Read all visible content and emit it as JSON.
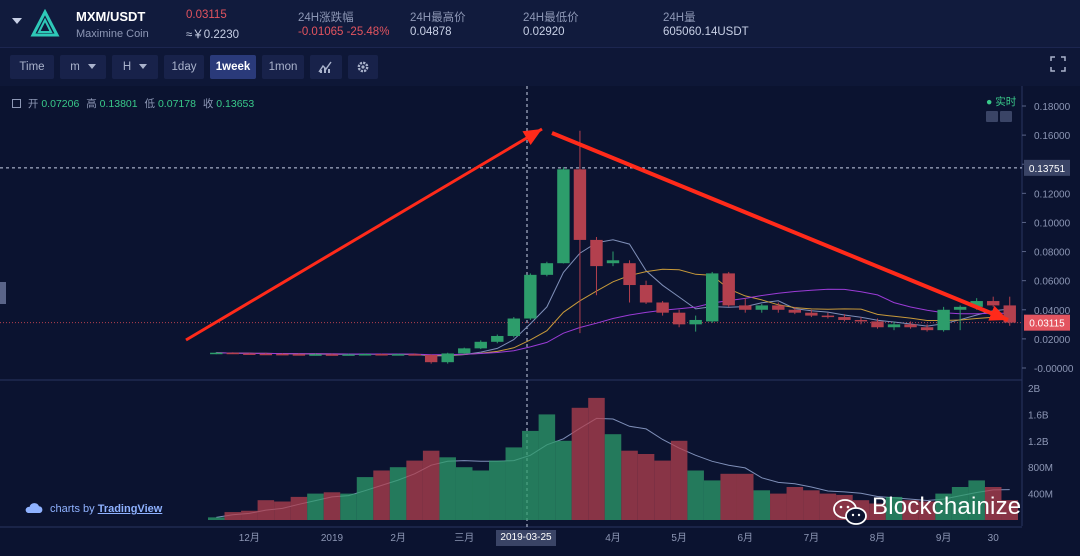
{
  "header": {
    "pair": "MXM/USDT",
    "coin_name": "Maximine Coin",
    "price": "0.03115",
    "price_cny": "≈￥0.2230",
    "change_label": "24H涨跌幅",
    "change_value": "-0.01065 -25.48%",
    "high_label": "24H最高价",
    "high_value": "0.04878",
    "low_label": "24H最低价",
    "low_value": "0.02920",
    "volume_label": "24H量",
    "volume_value": "605060.14USDT"
  },
  "toolbar": {
    "time": "Time",
    "minute": "m",
    "hour": "H",
    "day": "1day",
    "week": "1week",
    "month": "1mon"
  },
  "ohlc": {
    "open_label": "开",
    "open": "0.07206",
    "high_label": "高",
    "high": "0.13801",
    "low_label": "低",
    "low": "0.07178",
    "close_label": "收",
    "close": "0.13653"
  },
  "realtime_label": "实时",
  "price_axis": [
    "0.18000",
    "0.16000",
    "0.14000",
    "0.12000",
    "0.10000",
    "0.08000",
    "0.06000",
    "0.04000",
    "0.02000",
    "-0.00000"
  ],
  "current_price_tag": "0.03115",
  "crosshair_price_tag": "0.13751",
  "volume_axis": [
    "2B",
    "1.6B",
    "1.2B",
    "800M",
    "400M"
  ],
  "time_axis": [
    "12月",
    "2019",
    "2月",
    "三月",
    "4月",
    "5月",
    "6月",
    "7月",
    "8月",
    "9月",
    "30"
  ],
  "crosshair_date": "2019-03-25",
  "branding": "charts by",
  "branding_link": "TradingView",
  "watermark": "Blockchainize",
  "colors": {
    "up": "#2d9d6b",
    "down": "#b3404e",
    "bg": "#0b1330",
    "arrow": "#ff2a1a"
  },
  "chart_data": {
    "type": "candlestick",
    "candles": [
      {
        "o": 0.01,
        "h": 0.011,
        "l": 0.0095,
        "c": 0.0105
      },
      {
        "o": 0.0105,
        "h": 0.0108,
        "l": 0.0096,
        "c": 0.01
      },
      {
        "o": 0.01,
        "h": 0.0104,
        "l": 0.0094,
        "c": 0.0098
      },
      {
        "o": 0.0098,
        "h": 0.0104,
        "l": 0.0092,
        "c": 0.0097
      },
      {
        "o": 0.0097,
        "h": 0.0102,
        "l": 0.009,
        "c": 0.0095
      },
      {
        "o": 0.0095,
        "h": 0.01,
        "l": 0.0088,
        "c": 0.0093
      },
      {
        "o": 0.0093,
        "h": 0.01,
        "l": 0.0089,
        "c": 0.0094
      },
      {
        "o": 0.0094,
        "h": 0.0099,
        "l": 0.009,
        "c": 0.0092
      },
      {
        "o": 0.0092,
        "h": 0.0098,
        "l": 0.0087,
        "c": 0.0094
      },
      {
        "o": 0.0094,
        "h": 0.01,
        "l": 0.009,
        "c": 0.0096
      },
      {
        "o": 0.0096,
        "h": 0.0099,
        "l": 0.009,
        "c": 0.0093
      },
      {
        "o": 0.0093,
        "h": 0.0098,
        "l": 0.0089,
        "c": 0.0095
      },
      {
        "o": 0.0095,
        "h": 0.01,
        "l": 0.0089,
        "c": 0.009
      },
      {
        "o": 0.009,
        "h": 0.0094,
        "l": 0.003,
        "c": 0.004
      },
      {
        "o": 0.004,
        "h": 0.0105,
        "l": 0.003,
        "c": 0.01
      },
      {
        "o": 0.01,
        "h": 0.014,
        "l": 0.0095,
        "c": 0.0135
      },
      {
        "o": 0.0135,
        "h": 0.019,
        "l": 0.013,
        "c": 0.018
      },
      {
        "o": 0.018,
        "h": 0.023,
        "l": 0.017,
        "c": 0.022
      },
      {
        "o": 0.022,
        "h": 0.035,
        "l": 0.021,
        "c": 0.034
      },
      {
        "o": 0.034,
        "h": 0.065,
        "l": 0.033,
        "c": 0.064
      },
      {
        "o": 0.064,
        "h": 0.073,
        "l": 0.063,
        "c": 0.072
      },
      {
        "o": 0.072,
        "h": 0.138,
        "l": 0.0718,
        "c": 0.1365
      },
      {
        "o": 0.1365,
        "h": 0.163,
        "l": 0.024,
        "c": 0.088
      },
      {
        "o": 0.088,
        "h": 0.09,
        "l": 0.05,
        "c": 0.07
      },
      {
        "o": 0.072,
        "h": 0.08,
        "l": 0.07,
        "c": 0.074
      },
      {
        "o": 0.072,
        "h": 0.074,
        "l": 0.045,
        "c": 0.057
      },
      {
        "o": 0.057,
        "h": 0.06,
        "l": 0.044,
        "c": 0.045
      },
      {
        "o": 0.045,
        "h": 0.046,
        "l": 0.036,
        "c": 0.038
      },
      {
        "o": 0.038,
        "h": 0.04,
        "l": 0.028,
        "c": 0.03
      },
      {
        "o": 0.03,
        "h": 0.036,
        "l": 0.025,
        "c": 0.033
      },
      {
        "o": 0.032,
        "h": 0.066,
        "l": 0.031,
        "c": 0.065
      },
      {
        "o": 0.065,
        "h": 0.066,
        "l": 0.042,
        "c": 0.043
      },
      {
        "o": 0.043,
        "h": 0.048,
        "l": 0.038,
        "c": 0.04
      },
      {
        "o": 0.04,
        "h": 0.044,
        "l": 0.038,
        "c": 0.043
      },
      {
        "o": 0.043,
        "h": 0.045,
        "l": 0.038,
        "c": 0.04
      },
      {
        "o": 0.04,
        "h": 0.042,
        "l": 0.037,
        "c": 0.038
      },
      {
        "o": 0.038,
        "h": 0.04,
        "l": 0.035,
        "c": 0.036
      },
      {
        "o": 0.036,
        "h": 0.038,
        "l": 0.034,
        "c": 0.035
      },
      {
        "o": 0.035,
        "h": 0.037,
        "l": 0.032,
        "c": 0.033
      },
      {
        "o": 0.033,
        "h": 0.035,
        "l": 0.03,
        "c": 0.032
      },
      {
        "o": 0.032,
        "h": 0.034,
        "l": 0.027,
        "c": 0.028
      },
      {
        "o": 0.028,
        "h": 0.032,
        "l": 0.026,
        "c": 0.03
      },
      {
        "o": 0.03,
        "h": 0.032,
        "l": 0.027,
        "c": 0.028
      },
      {
        "o": 0.028,
        "h": 0.03,
        "l": 0.025,
        "c": 0.026
      },
      {
        "o": 0.026,
        "h": 0.042,
        "l": 0.025,
        "c": 0.04
      },
      {
        "o": 0.04,
        "h": 0.043,
        "l": 0.026,
        "c": 0.042
      },
      {
        "o": 0.042,
        "h": 0.048,
        "l": 0.04,
        "c": 0.046
      },
      {
        "o": 0.046,
        "h": 0.049,
        "l": 0.042,
        "c": 0.043
      },
      {
        "o": 0.043,
        "h": 0.049,
        "l": 0.029,
        "c": 0.0312
      }
    ],
    "volumes": [
      0.04,
      0.12,
      0.14,
      0.3,
      0.28,
      0.35,
      0.4,
      0.42,
      0.4,
      0.65,
      0.75,
      0.8,
      0.9,
      1.05,
      0.95,
      0.8,
      0.75,
      0.9,
      1.1,
      1.35,
      1.6,
      1.2,
      1.7,
      1.85,
      1.3,
      1.05,
      1.0,
      0.9,
      1.2,
      0.75,
      0.6,
      0.7,
      0.7,
      0.45,
      0.4,
      0.5,
      0.45,
      0.4,
      0.38,
      0.3,
      0.25,
      0.35,
      0.3,
      0.28,
      0.4,
      0.5,
      0.6,
      0.5,
      0.3
    ],
    "xlabel": "",
    "ylabel": ""
  }
}
